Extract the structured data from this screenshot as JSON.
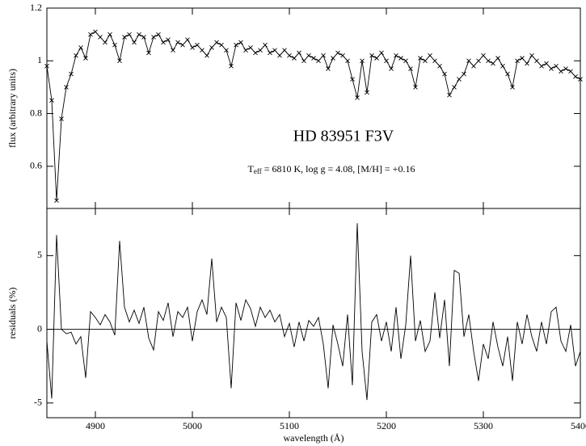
{
  "chart_data": [
    {
      "type": "line",
      "title": "HD 83951  F3V",
      "annotation_main": "T",
      "annotation_sub": "eff",
      "annotation_rest": " = 6810 K, log g = 4.08, [M/H] = +0.16",
      "ylabel": "flux (arbitrary units)",
      "markers": "x",
      "xlim": [
        4850,
        5400
      ],
      "xticks": [
        4900,
        5000,
        5100,
        5200,
        5300,
        5400
      ],
      "ylim": [
        0.44,
        1.2
      ],
      "yticks": [
        0.6,
        0.8,
        1,
        1.2
      ],
      "x": [
        4850,
        4855,
        4860,
        4865,
        4870,
        4875,
        4880,
        4885,
        4890,
        4895,
        4900,
        4905,
        4910,
        4915,
        4920,
        4925,
        4930,
        4935,
        4940,
        4945,
        4950,
        4955,
        4960,
        4965,
        4970,
        4975,
        4980,
        4985,
        4990,
        4995,
        5000,
        5005,
        5010,
        5015,
        5020,
        5025,
        5030,
        5035,
        5040,
        5045,
        5050,
        5055,
        5060,
        5065,
        5070,
        5075,
        5080,
        5085,
        5090,
        5095,
        5100,
        5105,
        5110,
        5115,
        5120,
        5125,
        5130,
        5135,
        5140,
        5145,
        5150,
        5155,
        5160,
        5165,
        5170,
        5175,
        5180,
        5185,
        5190,
        5195,
        5200,
        5205,
        5210,
        5215,
        5220,
        5225,
        5230,
        5235,
        5240,
        5245,
        5250,
        5255,
        5260,
        5265,
        5270,
        5275,
        5280,
        5285,
        5290,
        5295,
        5300,
        5305,
        5310,
        5315,
        5320,
        5325,
        5330,
        5335,
        5340,
        5345,
        5350,
        5355,
        5360,
        5365,
        5370,
        5375,
        5380,
        5385,
        5390,
        5395,
        5400
      ],
      "series": [
        {
          "color": "#000000",
          "values": [
            0.98,
            0.85,
            0.47,
            0.78,
            0.9,
            0.95,
            1.02,
            1.05,
            1.01,
            1.1,
            1.11,
            1.09,
            1.07,
            1.1,
            1.06,
            1.0,
            1.09,
            1.1,
            1.07,
            1.1,
            1.09,
            1.03,
            1.09,
            1.1,
            1.07,
            1.08,
            1.04,
            1.07,
            1.06,
            1.08,
            1.05,
            1.06,
            1.04,
            1.02,
            1.05,
            1.07,
            1.06,
            1.04,
            0.98,
            1.06,
            1.07,
            1.04,
            1.05,
            1.03,
            1.04,
            1.06,
            1.03,
            1.04,
            1.02,
            1.04,
            1.02,
            1.01,
            1.03,
            1.0,
            1.02,
            1.01,
            1.0,
            1.02,
            0.97,
            1.01,
            1.03,
            1.02,
            1.0,
            0.93,
            0.86,
            1.0,
            0.88,
            1.02,
            1.01,
            1.03,
            1.0,
            0.97,
            1.02,
            1.01,
            1.0,
            0.97,
            0.9,
            1.01,
            1.0,
            1.02,
            1.0,
            0.98,
            0.95,
            0.87,
            0.9,
            0.93,
            0.95,
            1.0,
            0.98,
            1.0,
            1.02,
            1.0,
            0.99,
            1.01,
            0.98,
            0.95,
            0.9,
            1.0,
            1.01,
            0.99,
            1.02,
            1.0,
            0.98,
            0.99,
            0.97,
            0.98,
            0.96,
            0.97,
            0.96,
            0.94,
            0.93
          ]
        }
      ]
    },
    {
      "type": "line",
      "ylabel": "residuals (%)",
      "xlabel": "wavelength (Å)",
      "xlim": [
        4850,
        5400
      ],
      "xticks": [
        4900,
        5000,
        5100,
        5200,
        5300,
        5400
      ],
      "ylim": [
        -6,
        8.2
      ],
      "yticks": [
        -5,
        0,
        5
      ],
      "hline": 0,
      "x": [
        4850,
        4855,
        4860,
        4865,
        4870,
        4875,
        4880,
        4885,
        4890,
        4895,
        4900,
        4905,
        4910,
        4915,
        4920,
        4925,
        4930,
        4935,
        4940,
        4945,
        4950,
        4955,
        4960,
        4965,
        4970,
        4975,
        4980,
        4985,
        4990,
        4995,
        5000,
        5005,
        5010,
        5015,
        5020,
        5025,
        5030,
        5035,
        5040,
        5045,
        5050,
        5055,
        5060,
        5065,
        5070,
        5075,
        5080,
        5085,
        5090,
        5095,
        5100,
        5105,
        5110,
        5115,
        5120,
        5125,
        5130,
        5135,
        5140,
        5145,
        5150,
        5155,
        5160,
        5165,
        5170,
        5175,
        5180,
        5185,
        5190,
        5195,
        5200,
        5205,
        5210,
        5215,
        5220,
        5225,
        5230,
        5235,
        5240,
        5245,
        5250,
        5255,
        5260,
        5265,
        5270,
        5275,
        5280,
        5285,
        5290,
        5295,
        5300,
        5305,
        5310,
        5315,
        5320,
        5325,
        5330,
        5335,
        5340,
        5345,
        5350,
        5355,
        5360,
        5365,
        5370,
        5375,
        5380,
        5385,
        5390,
        5395,
        5400
      ],
      "series": [
        {
          "color": "#000000",
          "values": [
            -0.8,
            -4.7,
            6.4,
            0,
            -0.3,
            -0.2,
            -1,
            -0.5,
            -3.3,
            1.2,
            0.8,
            0.3,
            1.0,
            0.5,
            -0.4,
            6.0,
            1.5,
            0.5,
            1.3,
            0.4,
            1.5,
            -0.6,
            -1.4,
            1.2,
            0.6,
            1.8,
            -0.5,
            1.2,
            0.8,
            1.5,
            -0.8,
            1.2,
            2.0,
            1.0,
            4.8,
            0.5,
            1.5,
            0.8,
            -4.0,
            1.8,
            0.6,
            2.0,
            1.4,
            0.2,
            1.5,
            0.8,
            1.3,
            0.5,
            1.0,
            -0.5,
            0.4,
            -1.2,
            0.5,
            -0.8,
            0.6,
            0.2,
            0.8,
            -1.0,
            -4.0,
            0.3,
            -1.0,
            -2.5,
            1.0,
            -3.8,
            7.2,
            -1.5,
            -4.8,
            0.5,
            1.0,
            -0.8,
            0.5,
            -1.5,
            1.5,
            -2.0,
            0.3,
            5.0,
            -0.8,
            0.6,
            -1.5,
            -0.8,
            2.5,
            -0.6,
            2.0,
            -2.5,
            4.0,
            3.8,
            -0.5,
            1.0,
            -1.5,
            -3.5,
            -1.0,
            -2.0,
            0.5,
            -1.2,
            -2.5,
            -0.5,
            -3.5,
            0.5,
            -1.0,
            1.0,
            -0.5,
            -1.5,
            0.5,
            -1.0,
            1.2,
            1.5,
            -0.8,
            -1.5,
            0.3,
            -2.5,
            -1.5
          ]
        }
      ]
    }
  ]
}
